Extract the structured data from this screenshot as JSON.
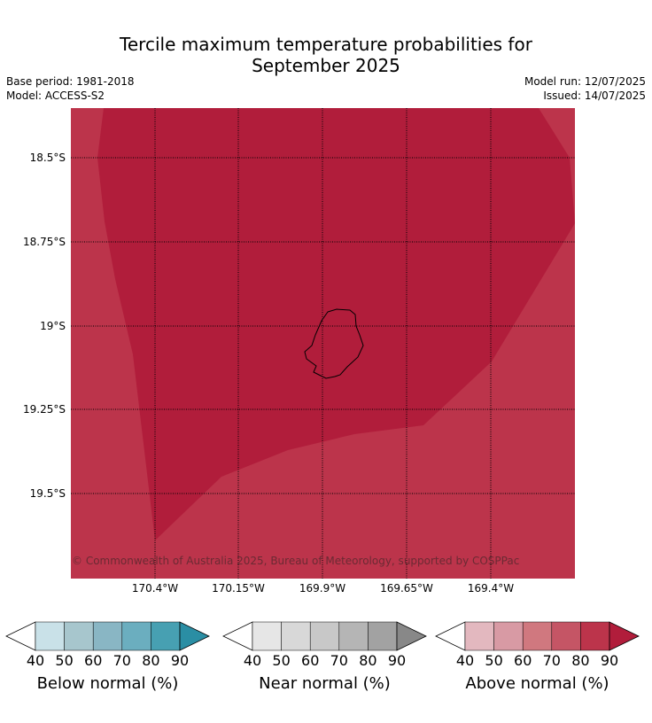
{
  "title_line1": "Tercile maximum temperature probabilities for",
  "title_line2": "September 2025",
  "meta": {
    "base_period": "Base period: 1981-2018",
    "model": "Model: ACCESS-S2",
    "model_run": "Model run: 12/07/2025",
    "issued": "Issued: 14/07/2025"
  },
  "map": {
    "latitude_labels": [
      "18.5°S",
      "18.75°S",
      "19°S",
      "19.25°S",
      "19.5°S"
    ],
    "longitude_labels": [
      "170.4°W",
      "170.15°W",
      "169.9°W",
      "169.65°W",
      "169.4°W"
    ],
    "fill_colors": {
      "above_80_90": "#bc344b",
      "above_90_plus": "#b11d3b"
    },
    "copyright": "© Commonwealth of Australia 2025, Bureau of Meteorology, supported by COSPPac"
  },
  "colorbars": [
    {
      "title": "Below normal (%)",
      "ticks": [
        "40",
        "50",
        "60",
        "70",
        "80",
        "90"
      ],
      "colors": [
        "#c9e1e8",
        "#a7c6cd",
        "#89b6c4",
        "#6baebf",
        "#47a0b2",
        "#2a8ea4"
      ]
    },
    {
      "title": "Near normal (%)",
      "ticks": [
        "40",
        "50",
        "60",
        "70",
        "80",
        "90"
      ],
      "colors": [
        "#e6e6e6",
        "#d8d8d8",
        "#c8c8c8",
        "#b5b5b5",
        "#a2a2a2",
        "#888888"
      ]
    },
    {
      "title": "Above normal (%)",
      "ticks": [
        "40",
        "50",
        "60",
        "70",
        "80",
        "90"
      ],
      "colors": [
        "#e3b8bf",
        "#d89aa4",
        "#d0787f",
        "#c55565",
        "#bc344b",
        "#b11d3b"
      ]
    }
  ]
}
